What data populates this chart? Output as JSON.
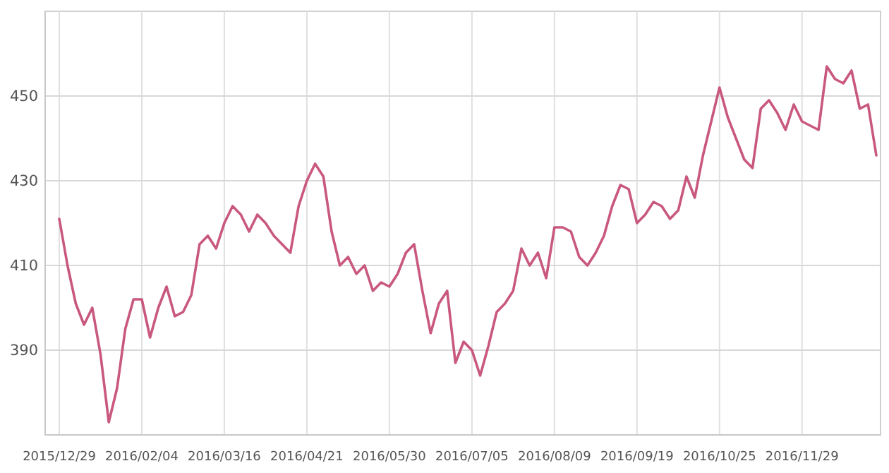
{
  "chart_data": {
    "type": "line",
    "categories": [
      "2015/12/29",
      null,
      null,
      null,
      null,
      null,
      null,
      null,
      null,
      null,
      "2016/02/04",
      null,
      null,
      null,
      null,
      null,
      null,
      null,
      null,
      null,
      "2016/03/16",
      null,
      null,
      null,
      null,
      null,
      null,
      null,
      null,
      null,
      "2016/04/21",
      null,
      null,
      null,
      null,
      null,
      null,
      null,
      null,
      null,
      "2016/05/30",
      null,
      null,
      null,
      null,
      null,
      null,
      null,
      null,
      null,
      "2016/07/05",
      null,
      null,
      null,
      null,
      null,
      null,
      null,
      null,
      null,
      "2016/08/09",
      null,
      null,
      null,
      null,
      null,
      null,
      null,
      null,
      null,
      "2016/09/19",
      null,
      null,
      null,
      null,
      null,
      null,
      null,
      null,
      null,
      "2016/10/25",
      null,
      null,
      null,
      null,
      null,
      null,
      null,
      null,
      null,
      "2016/11/29",
      null,
      null,
      null,
      null,
      null,
      null,
      null,
      null,
      null
    ],
    "series": [
      {
        "color": "#c9587f",
        "values": [
          421,
          410,
          401,
          396,
          400,
          389,
          373,
          381,
          395,
          402,
          402,
          393,
          400,
          405,
          398,
          399,
          403,
          415,
          417,
          414,
          420,
          424,
          422,
          418,
          422,
          420,
          417,
          415,
          413,
          424,
          430,
          434,
          431,
          418,
          410,
          412,
          408,
          410,
          404,
          406,
          405,
          408,
          413,
          415,
          404,
          394,
          401,
          404,
          387,
          392,
          390,
          384,
          391,
          399,
          401,
          404,
          414,
          410,
          413,
          407,
          419,
          419,
          418,
          412,
          410,
          413,
          417,
          424,
          429,
          428,
          420,
          422,
          425,
          424,
          421,
          423,
          431,
          426,
          436,
          444,
          452,
          445,
          440,
          435,
          433,
          447,
          449,
          446,
          442,
          448,
          444,
          443,
          442,
          457,
          454,
          453,
          456,
          447,
          448,
          436
        ]
      }
    ],
    "ylim": [
      370,
      470
    ],
    "yticks": [
      390,
      410,
      430,
      450
    ],
    "grid": true,
    "marker": "none",
    "line_style": "solid"
  }
}
